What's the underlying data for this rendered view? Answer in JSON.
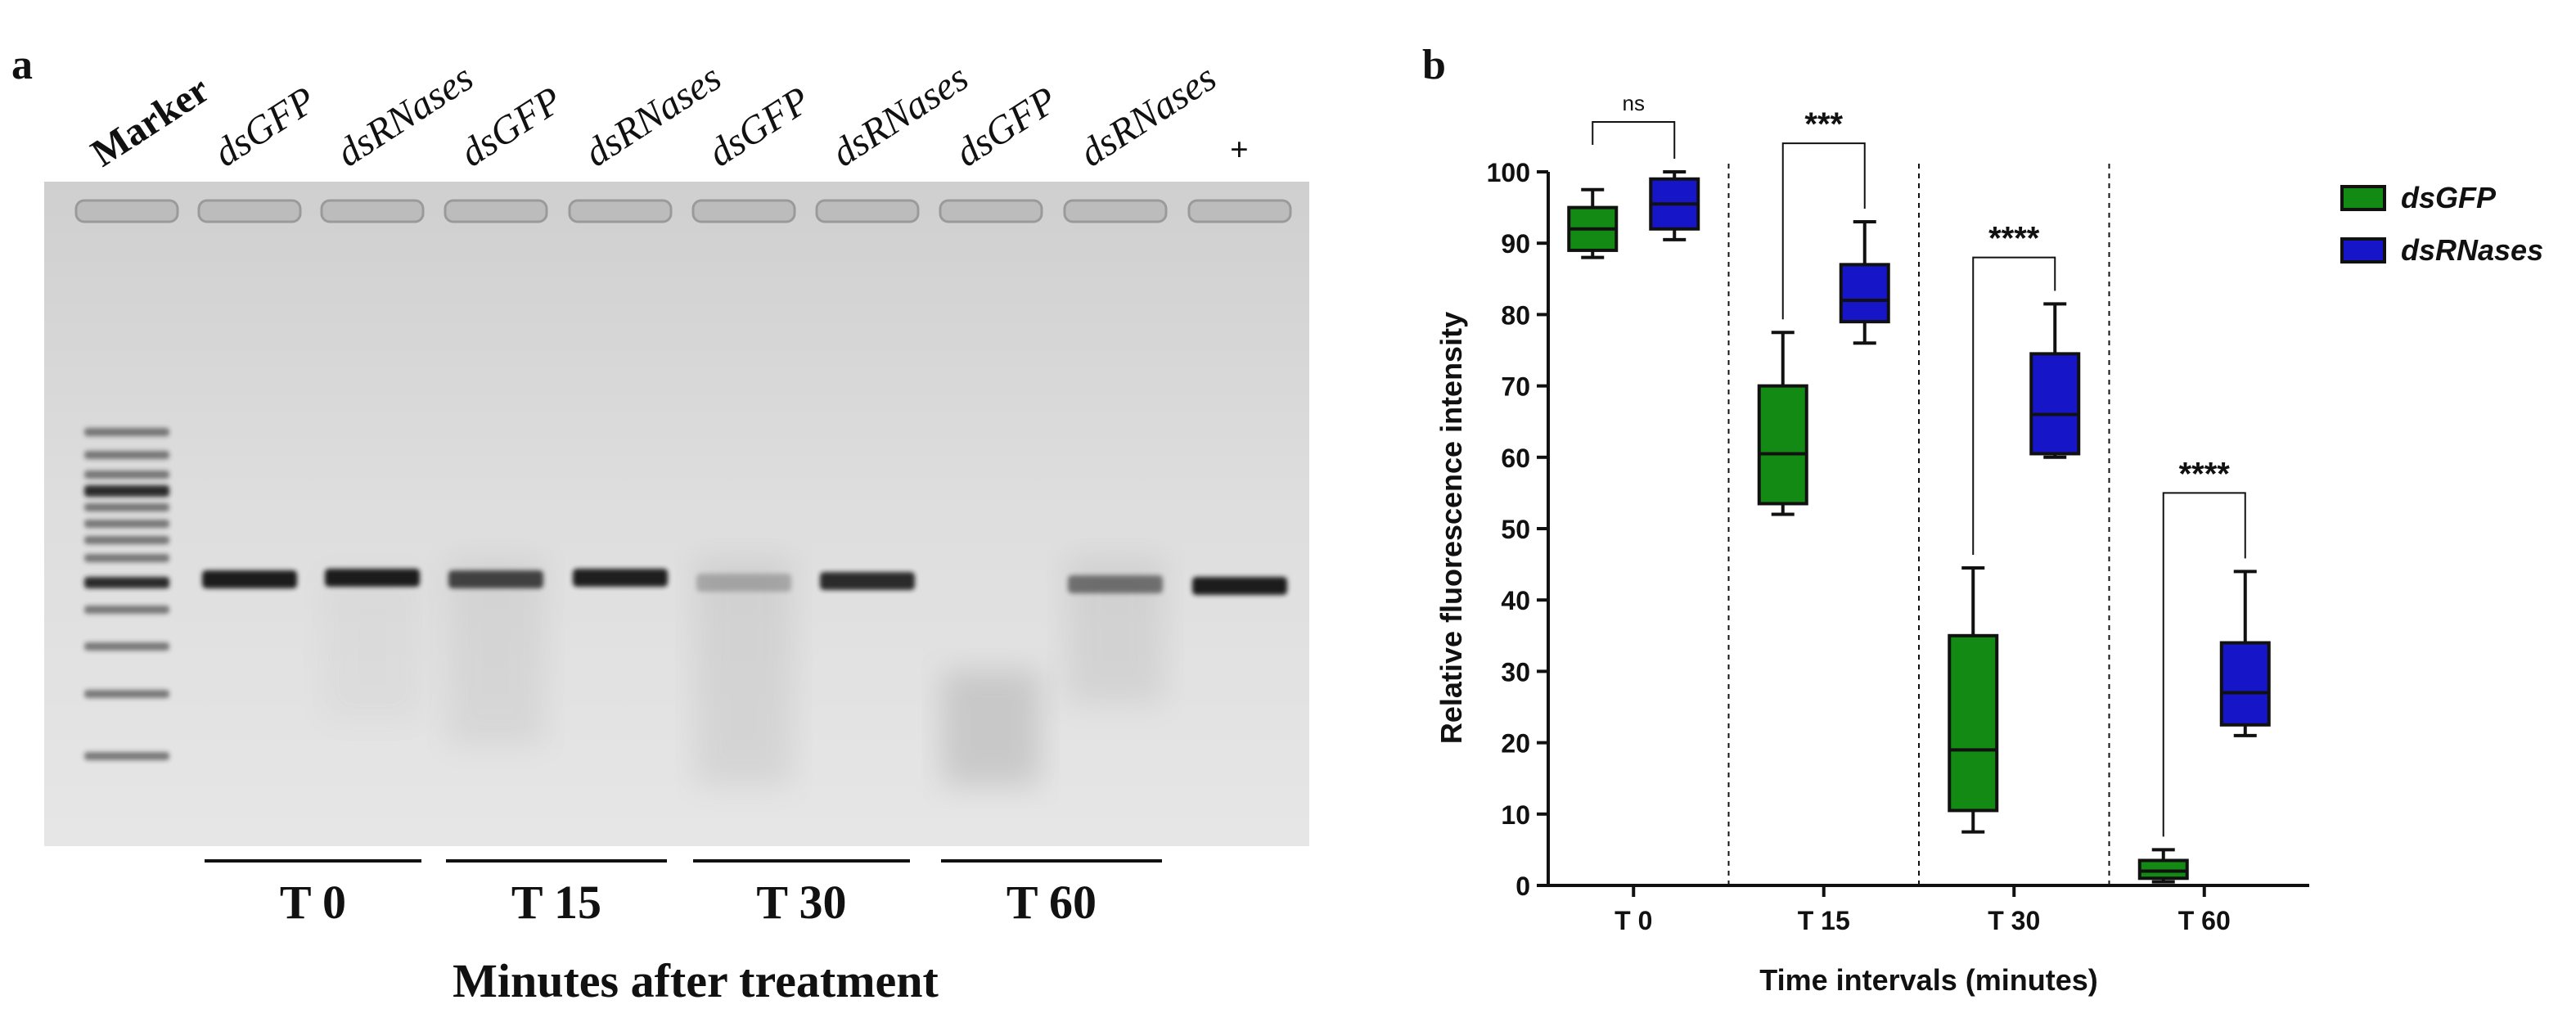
{
  "panel_a": {
    "letter": "a",
    "lane_labels": [
      "Marker",
      "dsGFP",
      "dsRNases",
      "dsGFP",
      "dsRNases",
      "dsGFP",
      "dsRNases",
      "dsGFP",
      "dsRNases",
      "+"
    ],
    "time_groups": [
      "T 0",
      "T 15",
      "T 30",
      "T 60"
    ],
    "footer": "Minutes after treatment",
    "band_intensity": [
      1.0,
      1.0,
      0.8,
      0.98,
      0.25,
      0.92,
      0.0,
      0.55,
      1.0
    ]
  },
  "panel_b": {
    "letter": "b"
  },
  "colors": {
    "dsGFP": "#138a13",
    "dsRNases": "#1616c8",
    "gel_bg": "#dcdcdc",
    "band": "#1a1a1a"
  },
  "chart_data": {
    "type": "box",
    "xlabel": "Time intervals (minutes)",
    "ylabel": "Relative fluorescence intensity",
    "ylim": [
      0,
      100
    ],
    "yticks": [
      0,
      10,
      20,
      30,
      40,
      50,
      60,
      70,
      80,
      90,
      100
    ],
    "categories": [
      "T 0",
      "T 15",
      "T 30",
      "T 60"
    ],
    "legend_position": "top-right",
    "series": [
      {
        "name": "dsGFP",
        "color": "#138a13",
        "boxes": [
          {
            "min": 88,
            "q1": 89,
            "median": 92,
            "q3": 95,
            "max": 97.5
          },
          {
            "min": 52,
            "q1": 53.5,
            "median": 60.5,
            "q3": 70,
            "max": 77.5
          },
          {
            "min": 7.5,
            "q1": 10.5,
            "median": 19,
            "q3": 35,
            "max": 44.5
          },
          {
            "min": 0.5,
            "q1": 1,
            "median": 2,
            "q3": 3.5,
            "max": 5
          }
        ]
      },
      {
        "name": "dsRNases",
        "color": "#1616c8",
        "boxes": [
          {
            "min": 90.5,
            "q1": 92,
            "median": 95.5,
            "q3": 99,
            "max": 100
          },
          {
            "min": 76,
            "q1": 79,
            "median": 82,
            "q3": 87,
            "max": 93
          },
          {
            "min": 60,
            "q1": 60.5,
            "median": 66,
            "q3": 74.5,
            "max": 81.5
          },
          {
            "min": 21,
            "q1": 22.5,
            "median": 27,
            "q3": 34,
            "max": 44
          }
        ]
      }
    ],
    "significance": [
      "ns",
      "***",
      "****",
      "****"
    ]
  }
}
